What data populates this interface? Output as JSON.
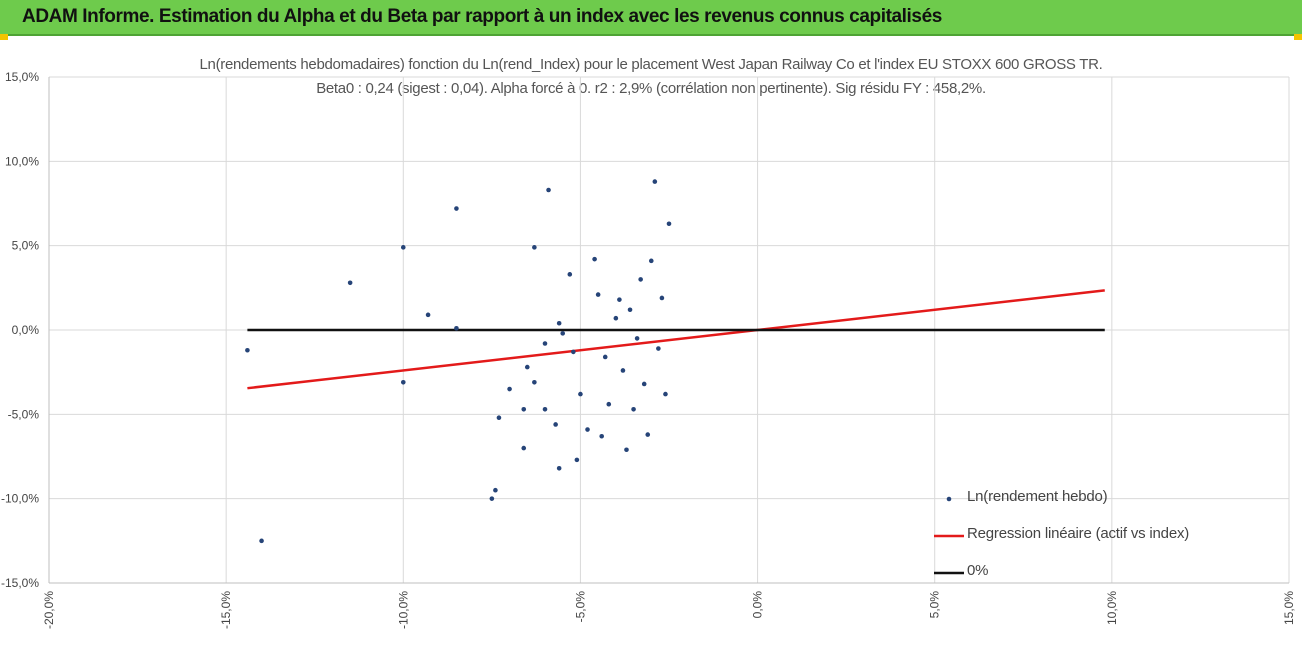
{
  "banner": {
    "title": "ADAM Informe. Estimation du Alpha et du Beta par rapport à un index avec les revenus connus capitalisés",
    "color": "#6ecb4c"
  },
  "chart_data": {
    "type": "scatter",
    "title": "Ln(rendements hebdomadaires) fonction du Ln(rend_Index) pour le placement West Japan Railway Co et l'index EU STOXX 600 GROSS TR.",
    "subtitle": "Beta0 : 0,24  (sigest : 0,04).  Alpha forcé à 0. r2 : 2,9% (corrélation non pertinente). Sig résidu FY : 458,2%.",
    "xlim": [
      -0.2,
      0.15
    ],
    "ylim": [
      -0.15,
      0.15
    ],
    "x_ticks": [
      -0.2,
      -0.15,
      -0.1,
      -0.05,
      0,
      0.05,
      0.1,
      0.15
    ],
    "x_tick_labels": [
      "-20,0%",
      "-15,0%",
      "-10,0%",
      "-5,0%",
      "0,0%",
      "5,0%",
      "10,0%",
      "15,0%"
    ],
    "y_ticks": [
      -0.15,
      -0.1,
      -0.05,
      0,
      0.05,
      0.1,
      0.15
    ],
    "y_tick_labels": [
      "-15,0%",
      "-10,0%",
      "-5,0%",
      "0,0%",
      "5,0%",
      "10,0%",
      "15,0%"
    ],
    "grid": true,
    "legend_position": "bottom-right",
    "series": [
      {
        "name": "Ln(rendement hebdo)",
        "kind": "scatter",
        "color": "#264478",
        "points": [
          [
            -0.144,
            -0.012
          ],
          [
            -0.14,
            -0.125
          ],
          [
            -0.115,
            0.028
          ],
          [
            -0.1,
            0.049
          ],
          [
            -0.1,
            -0.031
          ],
          [
            -0.093,
            0.009
          ],
          [
            -0.085,
            0.072
          ],
          [
            -0.085,
            0.001
          ],
          [
            -0.075,
            -0.1
          ],
          [
            -0.074,
            -0.095
          ],
          [
            -0.073,
            -0.052
          ],
          [
            -0.07,
            -0.035
          ],
          [
            -0.066,
            -0.047
          ],
          [
            -0.065,
            -0.022
          ],
          [
            -0.066,
            -0.07
          ],
          [
            -0.063,
            -0.031
          ],
          [
            -0.063,
            0.049
          ],
          [
            -0.06,
            -0.047
          ],
          [
            -0.06,
            -0.008
          ],
          [
            -0.059,
            0.083
          ],
          [
            -0.057,
            -0.056
          ],
          [
            -0.056,
            0.004
          ],
          [
            -0.056,
            -0.082
          ],
          [
            -0.055,
            -0.002
          ],
          [
            -0.053,
            0.033
          ],
          [
            -0.052,
            -0.013
          ],
          [
            -0.051,
            -0.077
          ],
          [
            -0.05,
            -0.038
          ],
          [
            -0.048,
            -0.059
          ],
          [
            -0.046,
            0.042
          ],
          [
            -0.045,
            0.021
          ],
          [
            -0.044,
            -0.063
          ],
          [
            -0.043,
            -0.016
          ],
          [
            -0.042,
            -0.044
          ],
          [
            -0.04,
            0.007
          ],
          [
            -0.039,
            0.018
          ],
          [
            -0.038,
            -0.024
          ],
          [
            -0.037,
            -0.071
          ],
          [
            -0.036,
            0.012
          ],
          [
            -0.035,
            -0.047
          ],
          [
            -0.034,
            -0.005
          ],
          [
            -0.033,
            0.03
          ],
          [
            -0.032,
            -0.032
          ],
          [
            -0.031,
            -0.062
          ],
          [
            -0.03,
            0.041
          ],
          [
            -0.029,
            0.088
          ],
          [
            -0.028,
            -0.011
          ],
          [
            -0.027,
            0.019
          ],
          [
            -0.026,
            -0.038
          ],
          [
            -0.025,
            0.063
          ]
        ]
      },
      {
        "name": "Regression linéaire (actif vs index)",
        "kind": "line",
        "color": "#e31a1a",
        "points": [
          [
            -0.144,
            -0.0345
          ],
          [
            0.098,
            0.0235
          ]
        ]
      },
      {
        "name": "0%",
        "kind": "line",
        "color": "#111111",
        "points": [
          [
            -0.144,
            0
          ],
          [
            0.098,
            0
          ]
        ]
      }
    ]
  }
}
